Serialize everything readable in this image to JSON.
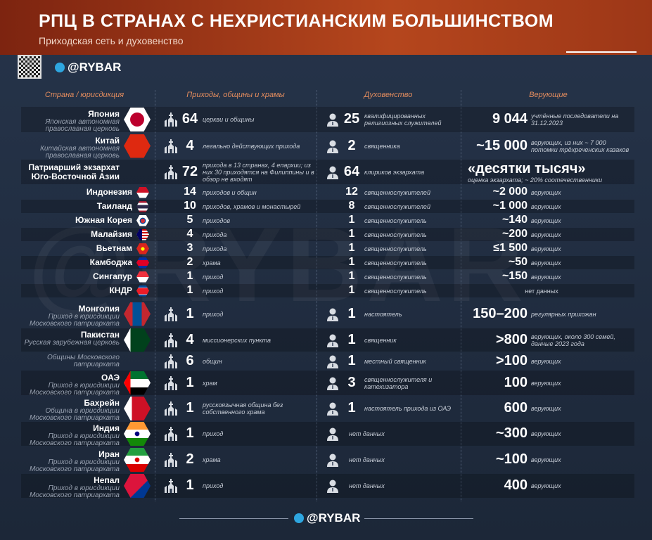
{
  "header": {
    "title": "РПЦ В СТРАНАХ С НЕХРИСТИАНСКИМ БОЛЬШИНСТВОМ",
    "subtitle": "Приходская сеть и духовенство",
    "brand": "@RYBAR"
  },
  "columns": [
    "Страна / юрисдикция",
    "Приходы, общины и храмы",
    "Духовенство",
    "Верующие"
  ],
  "rows": [
    {
      "country": "Япония",
      "jurisdiction": "Японская автономная православная церковь",
      "parishes": {
        "value": "64",
        "text": "церкви и общины"
      },
      "clergy": {
        "value": "25",
        "text": "квалифицированных религиозных служителей"
      },
      "believers": {
        "value": "9 044",
        "text": "учтённые последователи на 31.12.2023"
      }
    },
    {
      "country": "Китай",
      "jurisdiction": "Китайская автономная православная церковь",
      "parishes": {
        "value": "4",
        "text": "легально действующих прихода"
      },
      "clergy": {
        "value": "2",
        "text": "священника"
      },
      "believers": {
        "value": "~15 000",
        "text": "верующих, из них ~ 7 000 потомки трёхреченских казаков"
      }
    },
    {
      "country": "Патриарший экзархат Юго-Восточной Азии",
      "parishes": {
        "value": "72",
        "text": "прихода в 13 странах, 4 епархии; из них 30 приходятся на Филиппины и в обзор не входят"
      },
      "clergy": {
        "value": "64",
        "text": "клириков экзархата"
      },
      "believers": {
        "value": "«десятки тысяч»",
        "text": "оценка экзархата; ~ 20% соотечественники"
      },
      "countries": [
        {
          "country": "Индонезия",
          "parishes": {
            "value": "14",
            "text": "приходов и общин"
          },
          "clergy": {
            "value": "12",
            "text": "священнослужителей"
          },
          "believers": {
            "value": "~2 000",
            "text": "верующих"
          }
        },
        {
          "country": "Таиланд",
          "parishes": {
            "value": "10",
            "text": "приходов, храмов и монастырей"
          },
          "clergy": {
            "value": "8",
            "text": "священнослужителей"
          },
          "believers": {
            "value": "~1 000",
            "text": "верующих"
          }
        },
        {
          "country": "Южная Корея",
          "parishes": {
            "value": "5",
            "text": "приходов"
          },
          "clergy": {
            "value": "1",
            "text": "священнослужитель"
          },
          "believers": {
            "value": "~140",
            "text": "верующих"
          }
        },
        {
          "country": "Малайзия",
          "parishes": {
            "value": "4",
            "text": "прихода"
          },
          "clergy": {
            "value": "1",
            "text": "священнослужитель"
          },
          "believers": {
            "value": "~200",
            "text": "верующих"
          }
        },
        {
          "country": "Вьетнам",
          "parishes": {
            "value": "3",
            "text": "прихода"
          },
          "clergy": {
            "value": "1",
            "text": "священнослужитель"
          },
          "believers": {
            "value": "≤1 500",
            "text": "верующих"
          }
        },
        {
          "country": "Камбоджа",
          "parishes": {
            "value": "2",
            "text": "храма"
          },
          "clergy": {
            "value": "1",
            "text": "священнослужитель"
          },
          "believers": {
            "value": "~50",
            "text": "верующих"
          }
        },
        {
          "country": "Сингапур",
          "parishes": {
            "value": "1",
            "text": "приход"
          },
          "clergy": {
            "value": "1",
            "text": "священнослужитель"
          },
          "believers": {
            "value": "~150",
            "text": "верующих"
          }
        },
        {
          "country": "КНДР",
          "parishes": {
            "value": "1",
            "text": "приход"
          },
          "clergy": {
            "value": "1",
            "text": "священнослужитель"
          },
          "believers": {
            "text": "нет данных"
          }
        }
      ]
    },
    {
      "country": "Монголия",
      "jurisdiction": "Приход в юрисдикции Московского патриархата",
      "parishes": {
        "value": "1",
        "text": "приход"
      },
      "clergy": {
        "value": "1",
        "text": "настоятель"
      },
      "believers": {
        "value": "150–200",
        "text": "регулярных прихожан"
      }
    },
    {
      "country": "Пакистан",
      "jurisdiction": "Русская зарубежная церковь",
      "parishes": {
        "value": "4",
        "text": "миссионерских пункта"
      },
      "clergy": {
        "value": "1",
        "text": "священник"
      },
      "believers": {
        "value": ">800",
        "text": "верующих, около 300 семей, данные 2023 года"
      }
    },
    {
      "jurisdiction": "Общины Московского патриархата",
      "parishes": {
        "value": "6",
        "text": "общин"
      },
      "clergy": {
        "value": "1",
        "text": "местный священник"
      },
      "believers": {
        "value": ">100",
        "text": "верующих"
      }
    },
    {
      "country": "ОАЭ",
      "jurisdiction": "Приход в юрисдикции Московского патриархата",
      "parishes": {
        "value": "1",
        "text": "храм"
      },
      "clergy": {
        "value": "3",
        "text": "священнослужителя и катехизатора"
      },
      "believers": {
        "value": "100",
        "text": "верующих"
      }
    },
    {
      "country": "Бахрейн",
      "jurisdiction": "Община в юрисдикции Московского патриархата",
      "parishes": {
        "value": "1",
        "text": "русскоязычная община без собственного храма"
      },
      "clergy": {
        "value": "1",
        "text": "настоятель прихода из ОАЭ"
      },
      "believers": {
        "value": "600",
        "text": "верующих"
      }
    },
    {
      "country": "Индия",
      "jurisdiction": "Приход в юрисдикции Московского патриархата",
      "parishes": {
        "value": "1",
        "text": "приход"
      },
      "clergy": {
        "text": "нет данных"
      },
      "believers": {
        "value": "~300",
        "text": "верующих"
      }
    },
    {
      "country": "Иран",
      "jurisdiction": "Приход в юрисдикции Московского патриархата",
      "parishes": {
        "value": "2",
        "text": "храма"
      },
      "clergy": {
        "text": "нет данных"
      },
      "believers": {
        "value": "~100",
        "text": "верующих"
      }
    },
    {
      "country": "Непал",
      "jurisdiction": "Приход в юрисдикции Московского патриархата",
      "parishes": {
        "value": "1",
        "text": "приход"
      },
      "clergy": {
        "text": "нет данных"
      },
      "believers": {
        "value": "400",
        "text": "верующих"
      }
    }
  ]
}
